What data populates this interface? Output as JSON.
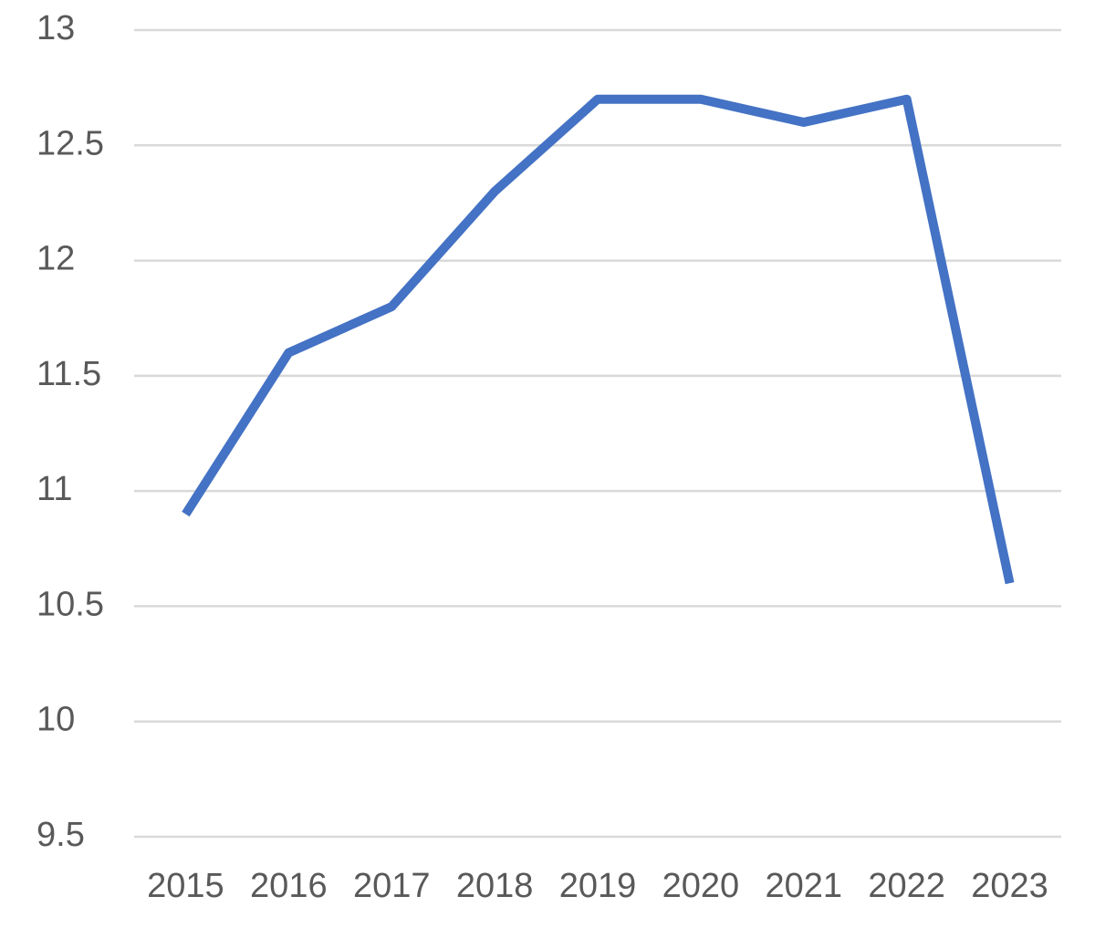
{
  "chart_data": {
    "type": "line",
    "categories": [
      "2015",
      "2016",
      "2017",
      "2018",
      "2019",
      "2020",
      "2021",
      "2022",
      "2023"
    ],
    "values": [
      10.9,
      11.6,
      11.8,
      12.3,
      12.7,
      12.7,
      12.6,
      12.7,
      10.6
    ],
    "color": "#4472c4",
    "ylim": [
      9.5,
      13
    ],
    "yticks": [
      9.5,
      10,
      10.5,
      11,
      11.5,
      12,
      12.5,
      13
    ],
    "grid": true
  }
}
